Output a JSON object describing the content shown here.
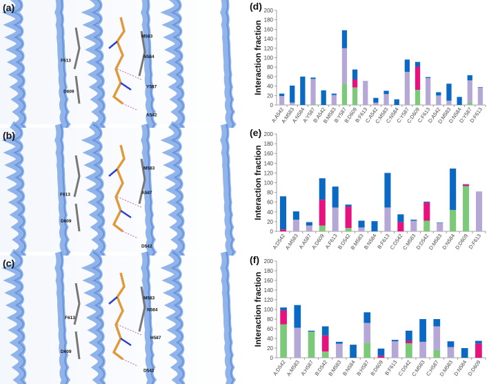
{
  "colors": {
    "green": "#7cc97a",
    "pink": "#e8127f",
    "lavender": "#b5a8d6",
    "blue": "#0a69c2",
    "helix": "#7ea7e6"
  },
  "structure_panels": [
    {
      "label": "(a)",
      "residues": [
        "M583",
        "N584",
        "F613",
        "D609",
        "Y587",
        "A542"
      ]
    },
    {
      "label": "(b)",
      "residues": [
        "M583",
        "A587",
        "F613",
        "D609",
        "D542"
      ]
    },
    {
      "label": "(c)",
      "residues": [
        "M583",
        "N584",
        "F613",
        "H587",
        "D609",
        "D542"
      ]
    }
  ],
  "chart_data": [
    {
      "type": "bar",
      "stacked": true,
      "panel_label": "(d)",
      "ylabel": "Interaction fraction",
      "ylim": [
        0,
        200
      ],
      "yticks": [
        "0",
        "20",
        "40",
        "60",
        "80",
        "100",
        "120",
        "140",
        "160",
        "180",
        "200"
      ],
      "categories": [
        "A:A542",
        "A:M583",
        "A:N584",
        "A:Y587",
        "B:A542",
        "B:M583",
        "B:Y587",
        "B:D609",
        "B:F613",
        "C:A542",
        "C:M583",
        "C:N584",
        "C:Y587",
        "C:D609",
        "C:F613",
        "D:A542",
        "D:M583",
        "D:N584",
        "D:Y587",
        "D:F613"
      ],
      "series": [
        {
          "color": "green",
          "values": [
            0,
            0,
            0,
            2,
            0,
            0,
            45,
            37,
            0,
            0,
            0,
            0,
            0,
            32,
            0,
            0,
            0,
            0,
            5,
            0
          ]
        },
        {
          "color": "pink",
          "values": [
            0,
            0,
            0,
            0,
            0,
            0,
            0,
            17,
            0,
            0,
            0,
            0,
            0,
            49,
            0,
            0,
            0,
            0,
            0,
            0
          ]
        },
        {
          "color": "lavender",
          "values": [
            19,
            5,
            0,
            53,
            0,
            21,
            75,
            0,
            51,
            5,
            23,
            0,
            70,
            0,
            57,
            20,
            9,
            0,
            47,
            37
          ]
        },
        {
          "color": "blue",
          "values": [
            5,
            36,
            60,
            3,
            31,
            3,
            38,
            21,
            0,
            10,
            7,
            12,
            26,
            10,
            2,
            7,
            36,
            17,
            11,
            1
          ]
        }
      ]
    },
    {
      "type": "bar",
      "stacked": true,
      "panel_label": "(e)",
      "ylabel": "Interaction fraction",
      "ylim": [
        0,
        200
      ],
      "yticks": [
        "0",
        "20",
        "40",
        "60",
        "80",
        "100",
        "120",
        "140",
        "160",
        "180",
        "200"
      ],
      "categories": [
        "A:D542",
        "A:M583",
        "A:A587",
        "A:D609",
        "A:F613",
        "B:D542",
        "B:M583",
        "B:N584",
        "B:F613",
        "C:D542",
        "C:M583",
        "D:D542",
        "D:M583",
        "D:N584",
        "D:D609",
        "D:F613"
      ],
      "series": [
        {
          "color": "green",
          "values": [
            0,
            0,
            0,
            12,
            0,
            7,
            0,
            0,
            0,
            0,
            0,
            22,
            0,
            44,
            93,
            0
          ]
        },
        {
          "color": "pink",
          "values": [
            4,
            0,
            0,
            53,
            0,
            44,
            0,
            0,
            0,
            19,
            0,
            37,
            0,
            0,
            3,
            0
          ]
        },
        {
          "color": "lavender",
          "values": [
            0,
            24,
            12,
            0,
            49,
            0,
            8,
            0,
            49,
            0,
            22,
            0,
            17,
            0,
            0,
            82
          ]
        },
        {
          "color": "blue",
          "values": [
            68,
            17,
            7,
            44,
            43,
            4,
            14,
            21,
            71,
            16,
            2,
            2,
            1,
            85,
            1,
            0
          ]
        }
      ]
    },
    {
      "type": "bar",
      "stacked": true,
      "panel_label": "(f)",
      "ylabel": "Interaction fraction",
      "ylim": [
        0,
        200
      ],
      "yticks": [
        "0",
        "20",
        "40",
        "60",
        "80",
        "100",
        "120",
        "140",
        "160",
        "180",
        "200"
      ],
      "categories": [
        "A:D542",
        "A:M583",
        "A:H587",
        "B:D542",
        "B:M583",
        "B:N584",
        "B:H587",
        "B:D609",
        "B:F613",
        "C:D542",
        "C:M583",
        "C:H587",
        "D:M583",
        "D:N584",
        "D:D609"
      ],
      "series": [
        {
          "color": "green",
          "values": [
            69,
            0,
            54,
            13,
            0,
            0,
            31,
            0,
            0,
            30,
            0,
            16,
            0,
            0,
            0
          ]
        },
        {
          "color": "pink",
          "values": [
            29,
            0,
            0,
            33,
            0,
            0,
            0,
            4,
            0,
            5,
            0,
            0,
            0,
            0,
            29
          ]
        },
        {
          "color": "lavender",
          "values": [
            0,
            62,
            0,
            0,
            29,
            0,
            41,
            0,
            34,
            0,
            33,
            49,
            22,
            0,
            0
          ]
        },
        {
          "color": "blue",
          "values": [
            6,
            47,
            2,
            19,
            4,
            27,
            22,
            15,
            3,
            21,
            47,
            15,
            12,
            20,
            6
          ]
        }
      ]
    }
  ]
}
